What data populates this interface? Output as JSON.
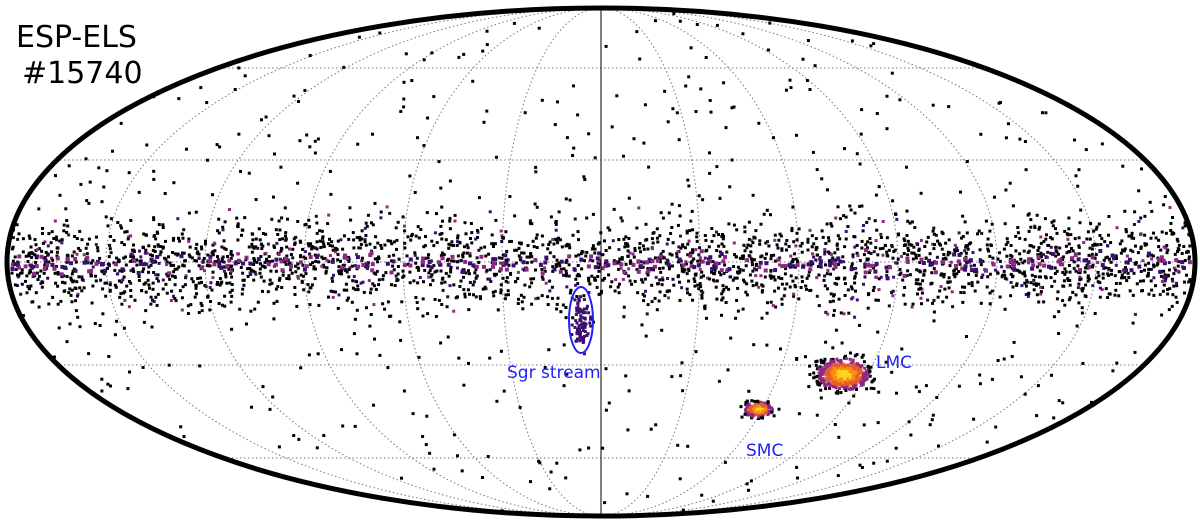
{
  "title": [
    "ESP-ELS",
    "#15740"
  ],
  "annotations": {
    "sgr": "Sgr stream",
    "lmc": "LMC",
    "smc": "SMC"
  }
}
